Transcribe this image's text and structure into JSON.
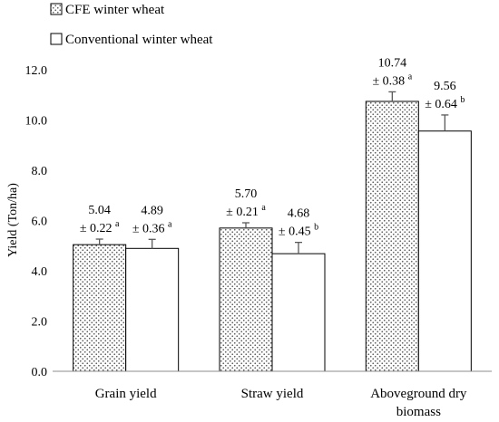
{
  "chart_data": {
    "type": "bar",
    "ylabel": "Yield (Ton/ha)",
    "xlabel": "",
    "ylim": [
      0,
      12
    ],
    "ytick_step": 2,
    "ytick_labels": [
      "0.0",
      "2.0",
      "4.0",
      "6.0",
      "8.0",
      "10.0",
      "12.0"
    ],
    "grid": false,
    "legend_position": "top-left",
    "categories": [
      [
        "Grain yield"
      ],
      [
        "Straw yield"
      ],
      [
        "Aboveground dry",
        "biomass"
      ]
    ],
    "series": [
      {
        "name": "CFE winter wheat",
        "pattern": "dotted",
        "fill": "#ffffff",
        "dot_color": "#5a5a5a",
        "values": [
          5.04,
          5.7,
          10.74
        ],
        "errors": [
          0.22,
          0.21,
          0.38
        ],
        "value_labels": [
          "5.04",
          "5.70",
          "10.74"
        ],
        "error_labels": [
          "± 0.22",
          "± 0.21",
          "± 0.38"
        ],
        "letters": [
          "a",
          "a",
          "a"
        ]
      },
      {
        "name": "Conventional winter wheat",
        "pattern": "none",
        "fill": "#ffffff",
        "values": [
          4.89,
          4.68,
          9.56
        ],
        "errors": [
          0.36,
          0.45,
          0.64
        ],
        "value_labels": [
          "4.89",
          "4.68",
          "9.56"
        ],
        "error_labels": [
          "± 0.36",
          "± 0.45",
          "± 0.64"
        ],
        "letters": [
          "a",
          "b",
          "b"
        ]
      }
    ],
    "colors": {
      "axis": "#8c8c8c",
      "bar_stroke": "#000000",
      "error_bar": "#595959"
    }
  }
}
